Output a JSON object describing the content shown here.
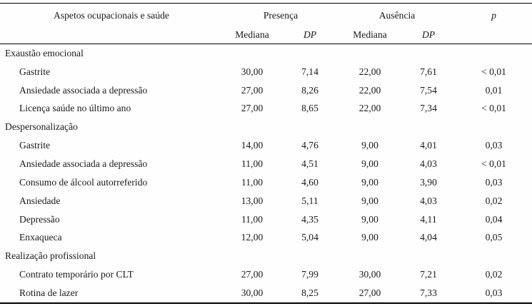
{
  "page": {
    "background_color": "#fefefe",
    "text_color": "#1a1a1a",
    "rule_color": "#000000"
  },
  "table": {
    "headers": {
      "aspects": "Aspetos ocupacionais e saúde",
      "presenca": "Presença",
      "ausencia": "Ausência",
      "p": "p",
      "sub": [
        "Mediana",
        "DP",
        "Mediana",
        "DP"
      ]
    },
    "sections": [
      {
        "title": "Exaustão emocional",
        "rows": [
          {
            "label": "Gastrite",
            "values": [
              "30,00",
              "7,14",
              "22,00",
              "7,61",
              "< 0,01"
            ]
          },
          {
            "label": "Ansiedade associada a depressão",
            "values": [
              "27,00",
              "8,26",
              "22,00",
              "7,54",
              "0,01"
            ]
          },
          {
            "label": "Licença saúde no último ano",
            "values": [
              "27,00",
              "8,65",
              "22,00",
              "7,34",
              "< 0,01"
            ]
          }
        ]
      },
      {
        "title": "Despersonalização",
        "rows": [
          {
            "label": "Gastrite",
            "values": [
              "14,00",
              "4,76",
              "9,00",
              "4,01",
              "0,03"
            ]
          },
          {
            "label": "Ansiedade associada a depressão",
            "values": [
              "11,00",
              "4,51",
              "9,00",
              "4,03",
              "< 0,01"
            ]
          },
          {
            "label": "Consumo de álcool autorreferido",
            "values": [
              "11,00",
              "4,60",
              "9,00",
              "3,90",
              "0,03"
            ]
          },
          {
            "label": "Ansiedade",
            "values": [
              "13,00",
              "5,11",
              "9,00",
              "4,03",
              "0,02"
            ]
          },
          {
            "label": "Depressão",
            "values": [
              "11,00",
              "4,35",
              "9,00",
              "4,11",
              "0,04"
            ]
          },
          {
            "label": "Enxaqueca",
            "values": [
              "12,00",
              "5,04",
              "9,00",
              "4,04",
              "0,05"
            ]
          }
        ]
      },
      {
        "title": "Realização profissional",
        "rows": [
          {
            "label": "Contrato temporário por CLT",
            "values": [
              "27,00",
              "7,99",
              "30,00",
              "7,21",
              "0,02"
            ]
          },
          {
            "label": "Rotina de lazer",
            "values": [
              "30,00",
              "8,25",
              "27,00",
              "7,33",
              "0,03"
            ]
          }
        ]
      }
    ]
  }
}
